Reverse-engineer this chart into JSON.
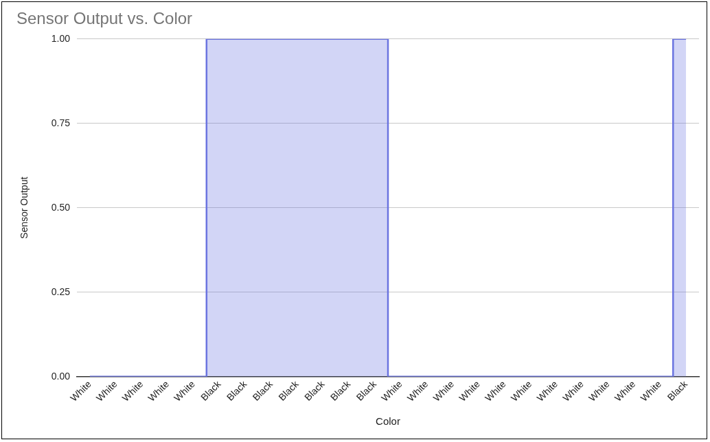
{
  "chart_data": {
    "type": "step",
    "title": "Sensor Output vs. Color",
    "xlabel": "Color",
    "ylabel": "Sensor Output",
    "categories": [
      "White",
      "White",
      "White",
      "White",
      "White",
      "Black",
      "Black",
      "Black",
      "Black",
      "Black",
      "Black",
      "Black",
      "White",
      "White",
      "White",
      "White",
      "White",
      "White",
      "White",
      "White",
      "White",
      "White",
      "White",
      "Black"
    ],
    "series": [
      {
        "color": "#6b74e0",
        "values": [
          0,
          0,
          0,
          0,
          0,
          1,
          1,
          1,
          1,
          1,
          1,
          1,
          0,
          0,
          0,
          0,
          0,
          0,
          0,
          0,
          0,
          0,
          0,
          1
        ]
      }
    ],
    "ylim": [
      0,
      1
    ],
    "yticks": [
      {
        "value": 0,
        "label": "0.00"
      },
      {
        "value": 0.25,
        "label": "0.25"
      },
      {
        "value": 0.5,
        "label": "0.50"
      },
      {
        "value": 0.75,
        "label": "0.75"
      },
      {
        "value": 1,
        "label": "1.00"
      }
    ],
    "grid": "y",
    "legend": false
  }
}
